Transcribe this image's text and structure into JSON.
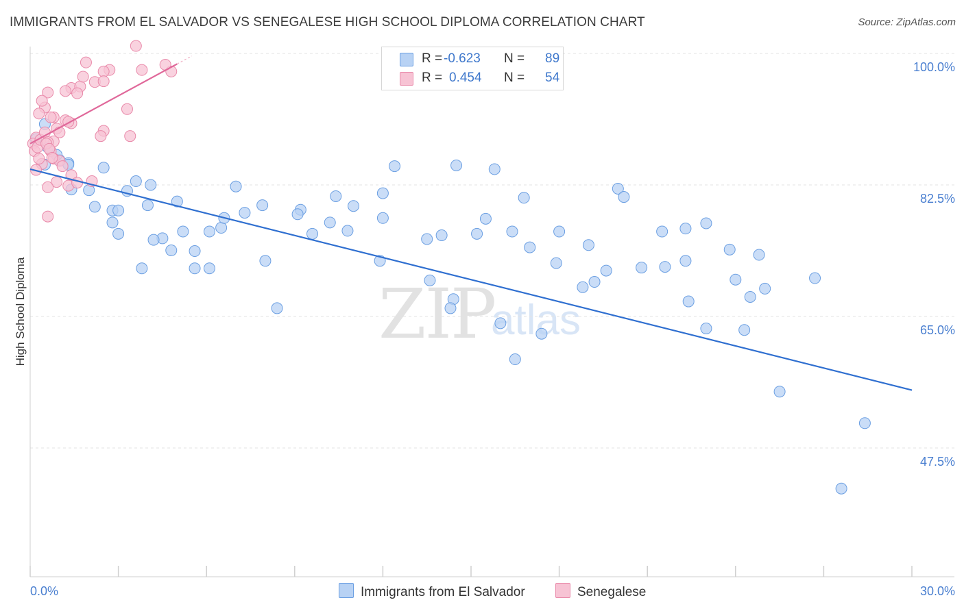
{
  "title": "IMMIGRANTS FROM EL SALVADOR VS SENEGALESE HIGH SCHOOL DIPLOMA CORRELATION CHART",
  "source": "Source: ZipAtlas.com",
  "watermark": {
    "zip": "ZIP",
    "atlas": "atlas"
  },
  "legend": {
    "r_label": "R =",
    "n_label": "N =",
    "rows": [
      {
        "r": "-0.623",
        "n": "89"
      },
      {
        "r": "0.454",
        "n": "54"
      }
    ]
  },
  "colors": {
    "blue_fill": "#b8d2f4",
    "blue_edge": "#6b9fe2",
    "blue_line": "#2f6fd0",
    "pink_fill": "#f7c3d4",
    "pink_edge": "#e98aaa",
    "pink_line": "#e0689a",
    "tick_text": "#4a7fd0",
    "grid": "#e3e3e3"
  },
  "chart_data": {
    "type": "scatter",
    "title": "IMMIGRANTS FROM EL SALVADOR VS SENEGALESE HIGH SCHOOL DIPLOMA CORRELATION CHART",
    "xlabel": "",
    "ylabel": "High School Diploma",
    "xlim": [
      0,
      30
    ],
    "ylim": [
      32,
      102
    ],
    "x_ticks": [
      0,
      3,
      6,
      9,
      12,
      15,
      18,
      21,
      24,
      27,
      30
    ],
    "x_tick_labels": {
      "start": "0.0%",
      "end": "30.0%"
    },
    "y_ticks": [
      47.5,
      65.0,
      82.5,
      100.0
    ],
    "y_tick_labels": [
      "47.5%",
      "65.0%",
      "82.5%",
      "100.0%"
    ],
    "grid": true,
    "legend_position": "bottom",
    "series": [
      {
        "name": "Immigrants from El Salvador",
        "color": "#6b9fe2",
        "r": -0.623,
        "n": 89,
        "trend": {
          "x": [
            0,
            30
          ],
          "y": [
            84.6,
            55.2
          ]
        },
        "x": [
          0.2,
          0.5,
          0.6,
          1.0,
          1.3,
          1.4,
          2.0,
          2.2,
          2.8,
          3.3,
          3.6,
          3.0,
          4.0,
          4.5,
          4.2,
          5.6,
          6.5,
          7.3,
          5.2,
          4.8,
          6.1,
          8.0,
          8.4,
          9.2,
          10.4,
          10.2,
          9.6,
          11.0,
          11.9,
          12.4,
          12.0,
          14.0,
          14.5,
          15.2,
          13.6,
          14.4,
          16.0,
          16.5,
          17.4,
          17.9,
          16.8,
          19.2,
          19.6,
          18.8,
          15.5,
          20.8,
          21.5,
          22.4,
          23.0,
          24.0,
          22.3,
          24.5,
          25.0,
          23.8,
          26.7,
          24.8,
          20.0,
          17.0,
          28.4,
          27.6,
          5.0,
          6.6,
          6.1,
          7.9,
          5.6,
          3.8,
          3.0,
          2.8,
          2.5,
          0.5,
          0.9,
          1.3,
          4.1,
          7.0,
          9.1,
          12.0,
          10.8,
          13.5,
          14.3,
          15.8,
          16.4,
          18.0,
          19.0,
          20.2,
          21.6,
          22.3,
          23.0,
          24.3,
          25.5
        ],
        "y": [
          88.6,
          90.6,
          87.5,
          85.8,
          85.4,
          81.9,
          81.8,
          79.6,
          79.1,
          81.7,
          83.0,
          79.1,
          79.8,
          75.4,
          75.2,
          73.7,
          76.8,
          78.8,
          76.3,
          73.8,
          71.4,
          72.4,
          66.1,
          79.2,
          81.0,
          77.5,
          76.0,
          79.7,
          72.4,
          85.0,
          81.4,
          75.8,
          85.1,
          76.0,
          69.8,
          67.3,
          64.1,
          59.3,
          62.7,
          72.1,
          80.8,
          69.6,
          71.1,
          68.9,
          78.0,
          71.5,
          76.3,
          67.0,
          63.4,
          69.9,
          76.7,
          67.6,
          68.7,
          73.9,
          70.1,
          73.2,
          82.0,
          74.2,
          50.8,
          42.1,
          80.3,
          78.1,
          76.3,
          79.8,
          71.4,
          71.4,
          76.0,
          77.5,
          84.8,
          85.2,
          86.5,
          85.2,
          82.5,
          82.3,
          78.6,
          78.1,
          76.4,
          75.3,
          66.1,
          84.6,
          76.3,
          76.3,
          74.5,
          80.9,
          71.6,
          72.4,
          77.4,
          63.2,
          55.0
        ]
      },
      {
        "name": "Senegalese",
        "color": "#e98aaa",
        "r": 0.454,
        "n": 54,
        "trend": {
          "x": [
            0,
            5.0
          ],
          "y": [
            88.0,
            98.6
          ]
        },
        "x": [
          2.7,
          1.4,
          3.8,
          1.9,
          1.7,
          2.2,
          3.3,
          2.5,
          1.6,
          1.4,
          2.5,
          1.2,
          0.6,
          0.8,
          0.9,
          1.3,
          1.8,
          1.2,
          0.8,
          0.5,
          0.4,
          0.7,
          0.3,
          0.2,
          0.1,
          0.15,
          0.25,
          0.35,
          0.5,
          0.6,
          0.7,
          0.8,
          1.0,
          1.1,
          1.4,
          0.9,
          0.6,
          0.4,
          0.3,
          0.2,
          0.55,
          0.65,
          0.75,
          1.3,
          1.6,
          2.1,
          2.4,
          3.4,
          4.8,
          4.6,
          3.6,
          2.5,
          1.0,
          0.6
        ],
        "y": [
          97.8,
          95.4,
          97.8,
          98.8,
          95.6,
          96.2,
          92.6,
          97.6,
          94.7,
          90.7,
          89.7,
          91.1,
          94.8,
          91.5,
          90.0,
          90.9,
          96.9,
          95.0,
          88.3,
          92.8,
          93.7,
          91.5,
          92.0,
          88.8,
          88.0,
          87.0,
          87.5,
          88.5,
          89.5,
          88.2,
          87.0,
          86.0,
          85.7,
          85.0,
          83.8,
          82.9,
          82.2,
          85.3,
          86.0,
          84.5,
          88.0,
          87.3,
          86.1,
          82.4,
          82.8,
          83.0,
          89.0,
          89.0,
          97.6,
          98.5,
          101.0,
          96.3,
          89.5,
          78.3
        ]
      }
    ]
  },
  "bottom_legend": {
    "items": [
      {
        "label": "Immigrants from El Salvador"
      },
      {
        "label": "Senegalese"
      }
    ]
  }
}
